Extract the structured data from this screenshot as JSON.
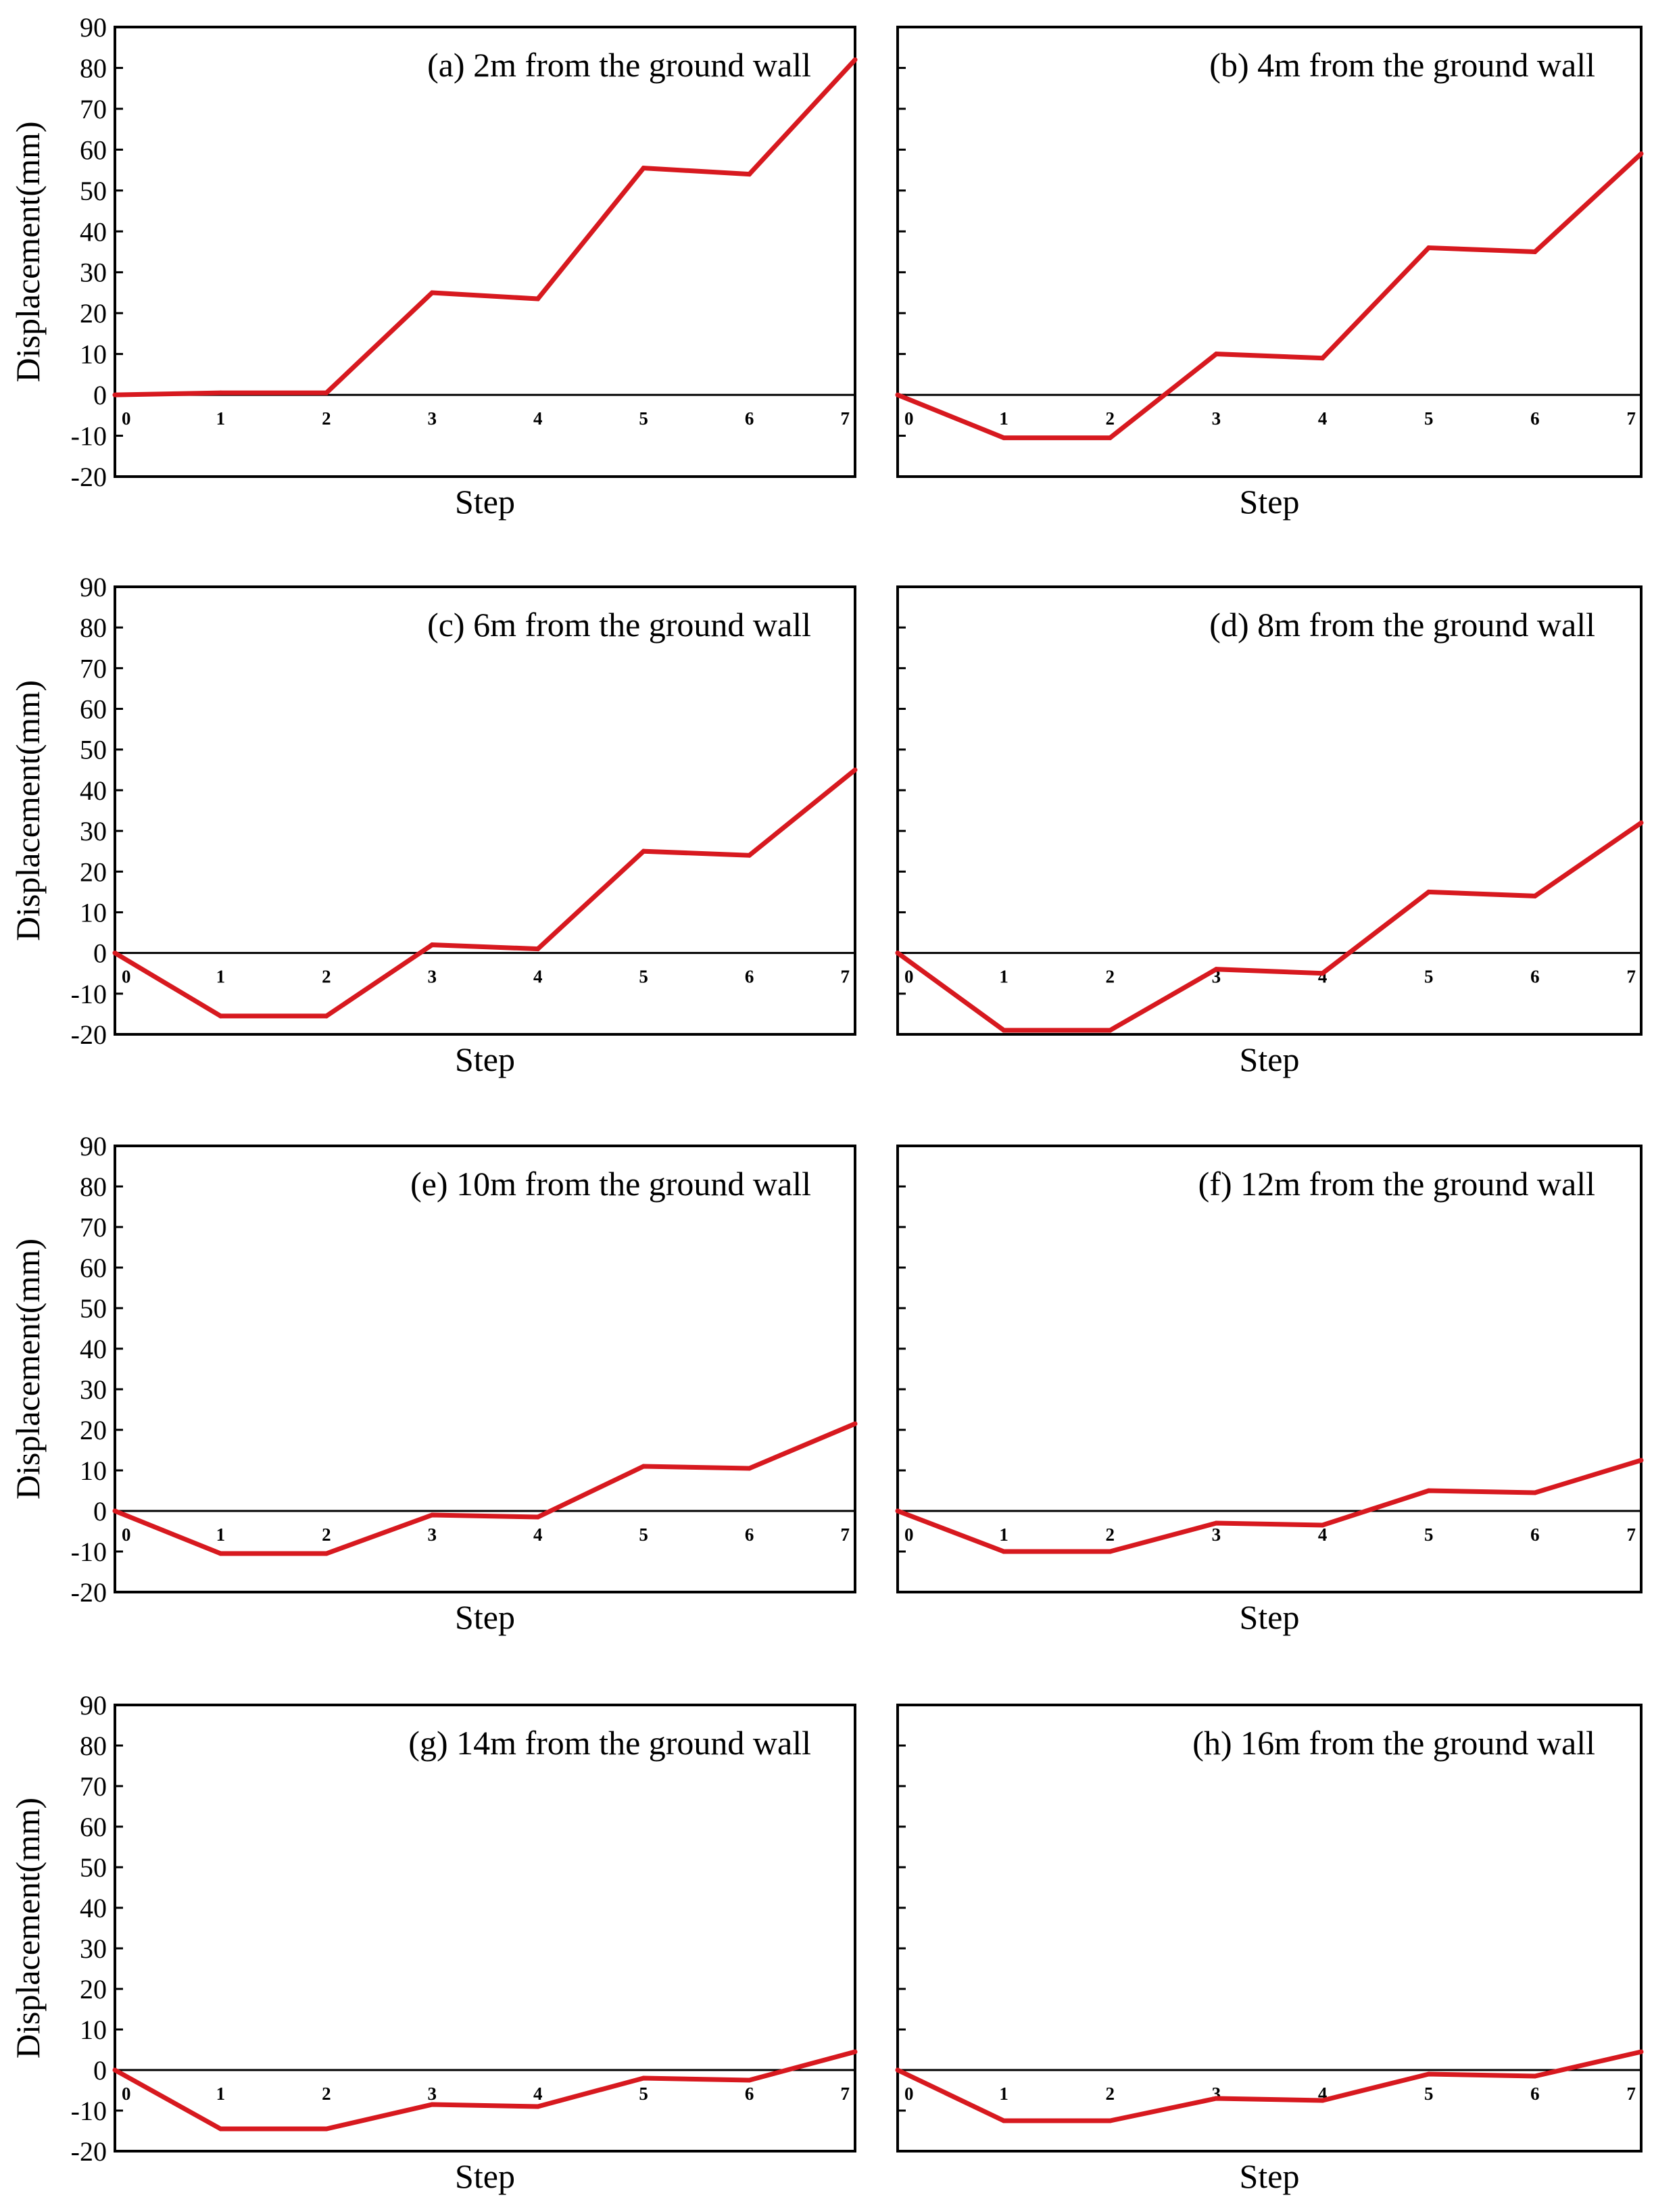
{
  "chart_data": [
    {
      "type": "line",
      "title": "(a) 2m from the ground wall",
      "xlabel": "Step",
      "ylabel": "Displacement(mm)",
      "x": [
        0,
        1,
        2,
        3,
        4,
        5,
        6,
        7
      ],
      "xticks": [
        "0",
        "1",
        "2",
        "3",
        "4",
        "5",
        "6",
        "7"
      ],
      "yticks": [
        "90",
        "80",
        "70",
        "60",
        "50",
        "40",
        "30",
        "20",
        "10",
        "0",
        "-10",
        "-20"
      ],
      "ylim": [
        -20,
        90
      ],
      "series": [
        {
          "name": "Displacement",
          "values": [
            0,
            0.5,
            0.5,
            25,
            23.5,
            55.5,
            54,
            82
          ],
          "color": "#d7191f"
        }
      ]
    },
    {
      "type": "line",
      "title": "(b) 4m from the ground wall",
      "xlabel": "Step",
      "ylabel": "",
      "x": [
        0,
        1,
        2,
        3,
        4,
        5,
        6,
        7
      ],
      "xticks": [
        "0",
        "1",
        "2",
        "3",
        "4",
        "5",
        "6",
        "7"
      ],
      "yticks": [],
      "ylim": [
        -20,
        90
      ],
      "series": [
        {
          "name": "Displacement",
          "values": [
            0,
            -10.5,
            -10.5,
            10,
            9,
            36,
            35,
            59
          ],
          "color": "#d7191f"
        }
      ]
    },
    {
      "type": "line",
      "title": "(c) 6m from the ground wall",
      "xlabel": "Step",
      "ylabel": "Displacement(mm)",
      "x": [
        0,
        1,
        2,
        3,
        4,
        5,
        6,
        7
      ],
      "xticks": [
        "0",
        "1",
        "2",
        "3",
        "4",
        "5",
        "6",
        "7"
      ],
      "yticks": [
        "90",
        "80",
        "70",
        "60",
        "50",
        "40",
        "30",
        "20",
        "10",
        "0",
        "-10",
        "-20"
      ],
      "ylim": [
        -20,
        90
      ],
      "series": [
        {
          "name": "Displacement",
          "values": [
            0,
            -15.5,
            -15.5,
            2,
            1,
            25,
            24,
            45
          ],
          "color": "#d7191f"
        }
      ]
    },
    {
      "type": "line",
      "title": "(d) 8m from the ground wall",
      "xlabel": "Step",
      "ylabel": "",
      "x": [
        0,
        1,
        2,
        3,
        4,
        5,
        6,
        7
      ],
      "xticks": [
        "0",
        "1",
        "2",
        "3",
        "4",
        "5",
        "6",
        "7"
      ],
      "yticks": [],
      "ylim": [
        -20,
        90
      ],
      "series": [
        {
          "name": "Displacement",
          "values": [
            0,
            -19,
            -19,
            -4,
            -5,
            15,
            14,
            32
          ],
          "color": "#d7191f"
        }
      ]
    },
    {
      "type": "line",
      "title": "(e) 10m from the ground wall",
      "xlabel": "Step",
      "ylabel": "Displacement(mm)",
      "x": [
        0,
        1,
        2,
        3,
        4,
        5,
        6,
        7
      ],
      "xticks": [
        "0",
        "1",
        "2",
        "3",
        "4",
        "5",
        "6",
        "7"
      ],
      "yticks": [
        "90",
        "80",
        "70",
        "60",
        "50",
        "40",
        "30",
        "20",
        "10",
        "0",
        "-10",
        "-20"
      ],
      "ylim": [
        -20,
        90
      ],
      "series": [
        {
          "name": "Displacement",
          "values": [
            0,
            -10.5,
            -10.5,
            -1,
            -1.5,
            11,
            10.5,
            21.5
          ],
          "color": "#d7191f"
        }
      ]
    },
    {
      "type": "line",
      "title": "(f) 12m from the ground wall",
      "xlabel": "Step",
      "ylabel": "",
      "x": [
        0,
        1,
        2,
        3,
        4,
        5,
        6,
        7
      ],
      "xticks": [
        "0",
        "1",
        "2",
        "3",
        "4",
        "5",
        "6",
        "7"
      ],
      "yticks": [],
      "ylim": [
        -20,
        90
      ],
      "series": [
        {
          "name": "Displacement",
          "values": [
            0,
            -10,
            -10,
            -3,
            -3.5,
            5,
            4.5,
            12.5
          ],
          "color": "#d7191f"
        }
      ]
    },
    {
      "type": "line",
      "title": "(g) 14m from the ground wall",
      "xlabel": "Step",
      "ylabel": "Displacement(mm)",
      "x": [
        0,
        1,
        2,
        3,
        4,
        5,
        6,
        7
      ],
      "xticks": [
        "0",
        "1",
        "2",
        "3",
        "4",
        "5",
        "6",
        "7"
      ],
      "yticks": [
        "90",
        "80",
        "70",
        "60",
        "50",
        "40",
        "30",
        "20",
        "10",
        "0",
        "-10",
        "-20"
      ],
      "ylim": [
        -20,
        90
      ],
      "series": [
        {
          "name": "Displacement",
          "values": [
            0,
            -14.5,
            -14.5,
            -8.5,
            -9,
            -2,
            -2.5,
            4.5
          ],
          "color": "#d7191f"
        }
      ]
    },
    {
      "type": "line",
      "title": "(h) 16m from the ground wall",
      "xlabel": "Step",
      "ylabel": "",
      "x": [
        0,
        1,
        2,
        3,
        4,
        5,
        6,
        7
      ],
      "xticks": [
        "0",
        "1",
        "2",
        "3",
        "4",
        "5",
        "6",
        "7"
      ],
      "yticks": [],
      "ylim": [
        -20,
        90
      ],
      "series": [
        {
          "name": "Displacement",
          "values": [
            0,
            -12.5,
            -12.5,
            -7,
            -7.5,
            -1,
            -1.5,
            4.5
          ],
          "color": "#d7191f"
        }
      ]
    }
  ]
}
